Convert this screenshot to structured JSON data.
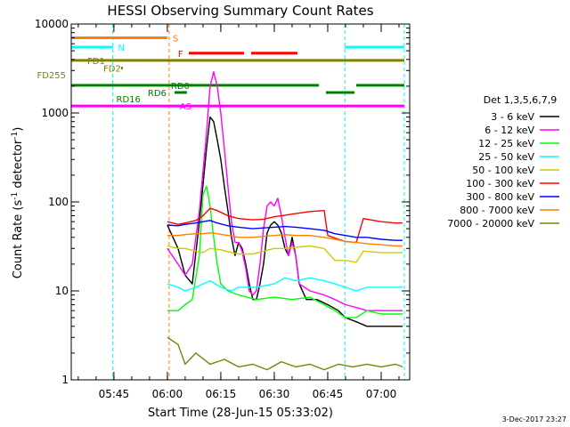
{
  "chart_data": {
    "type": "line",
    "title": "HESSI Observing Summary Count Rates",
    "xlabel": "Start Time (28-Jun-15 05:33:02)",
    "ylabel": "Count Rate (s",
    "ylabel_sup1": "-1",
    "ylabel_mid": " detector",
    "ylabel_sup2": "-1",
    "ylabel_end": ")",
    "xlim": [
      "05:33:02",
      "07:08:00"
    ],
    "ylim": [
      1,
      10000
    ],
    "yscale": "log",
    "x_ticks": [
      "05:45",
      "06:00",
      "06:15",
      "06:30",
      "06:45",
      "07:00"
    ],
    "y_ticks": [
      {
        "label": "1",
        "value": 1
      },
      {
        "label": "10",
        "value": 10
      },
      {
        "label": "100",
        "value": 100
      },
      {
        "label": "1000",
        "value": 1000
      },
      {
        "label": "10000",
        "value": 10000
      }
    ],
    "legend_title": "Det 1,3,5,6,7,9",
    "legend_position": "right",
    "series": [
      {
        "name": "3 - 6 keV",
        "color": "#000000",
        "values": [
          [
            "06:00",
            55
          ],
          [
            "06:03",
            30
          ],
          [
            "06:05",
            15
          ],
          [
            "06:07",
            12
          ],
          [
            "06:09",
            60
          ],
          [
            "06:11",
            400
          ],
          [
            "06:12",
            900
          ],
          [
            "06:13",
            800
          ],
          [
            "06:14",
            500
          ],
          [
            "06:15",
            300
          ],
          [
            "06:16",
            150
          ],
          [
            "06:17",
            80
          ],
          [
            "06:18",
            40
          ],
          [
            "06:19",
            25
          ],
          [
            "06:20",
            35
          ],
          [
            "06:21",
            30
          ],
          [
            "06:22",
            20
          ],
          [
            "06:23",
            12
          ],
          [
            "06:24",
            8
          ],
          [
            "06:25",
            8
          ],
          [
            "06:26",
            12
          ],
          [
            "06:27",
            20
          ],
          [
            "06:28",
            45
          ],
          [
            "06:29",
            55
          ],
          [
            "06:30",
            60
          ],
          [
            "06:31",
            55
          ],
          [
            "06:32",
            45
          ],
          [
            "06:33",
            30
          ],
          [
            "06:34",
            25
          ],
          [
            "06:35",
            40
          ],
          [
            "06:36",
            25
          ],
          [
            "06:37",
            12
          ],
          [
            "06:39",
            8
          ],
          [
            "06:42",
            8
          ],
          [
            "06:45",
            7
          ],
          [
            "06:48",
            6
          ],
          [
            "06:50",
            5
          ],
          [
            "06:53",
            4.5
          ],
          [
            "06:56",
            4
          ],
          [
            "06:58",
            4
          ],
          [
            "07:01",
            4
          ],
          [
            "07:04",
            4
          ],
          [
            "07:06",
            4
          ]
        ]
      },
      {
        "name": "6 - 12 keV",
        "color": "#ff00ff",
        "values": [
          [
            "06:00",
            30
          ],
          [
            "06:03",
            20
          ],
          [
            "06:05",
            15
          ],
          [
            "06:07",
            20
          ],
          [
            "06:09",
            80
          ],
          [
            "06:11",
            600
          ],
          [
            "06:12",
            2000
          ],
          [
            "06:13",
            2900
          ],
          [
            "06:14",
            2000
          ],
          [
            "06:15",
            1000
          ],
          [
            "06:16",
            400
          ],
          [
            "06:17",
            150
          ],
          [
            "06:18",
            60
          ],
          [
            "06:19",
            35
          ],
          [
            "06:20",
            35
          ],
          [
            "06:21",
            28
          ],
          [
            "06:22",
            18
          ],
          [
            "06:23",
            10
          ],
          [
            "06:24",
            9
          ],
          [
            "06:25",
            10
          ],
          [
            "06:26",
            20
          ],
          [
            "06:27",
            50
          ],
          [
            "06:28",
            90
          ],
          [
            "06:29",
            100
          ],
          [
            "06:30",
            90
          ],
          [
            "06:31",
            110
          ],
          [
            "06:32",
            70
          ],
          [
            "06:33",
            40
          ],
          [
            "06:34",
            25
          ],
          [
            "06:35",
            35
          ],
          [
            "06:36",
            25
          ],
          [
            "06:37",
            12
          ],
          [
            "06:40",
            10
          ],
          [
            "06:44",
            9
          ],
          [
            "06:47",
            8
          ],
          [
            "06:50",
            7
          ],
          [
            "06:53",
            6.5
          ],
          [
            "06:56",
            6
          ],
          [
            "07:00",
            6
          ],
          [
            "07:04",
            6
          ],
          [
            "07:06",
            6
          ]
        ]
      },
      {
        "name": "12 - 25 keV",
        "color": "#00ff00",
        "values": [
          [
            "06:00",
            6
          ],
          [
            "06:03",
            6
          ],
          [
            "06:05",
            7
          ],
          [
            "06:07",
            8
          ],
          [
            "06:09",
            25
          ],
          [
            "06:10",
            120
          ],
          [
            "06:11",
            150
          ],
          [
            "06:12",
            90
          ],
          [
            "06:13",
            40
          ],
          [
            "06:14",
            20
          ],
          [
            "06:15",
            12
          ],
          [
            "06:17",
            10
          ],
          [
            "06:20",
            9
          ],
          [
            "06:25",
            8
          ],
          [
            "06:30",
            8.5
          ],
          [
            "06:35",
            8
          ],
          [
            "06:40",
            8.5
          ],
          [
            "06:44",
            7
          ],
          [
            "06:47",
            6
          ],
          [
            "06:50",
            5
          ],
          [
            "06:53",
            5
          ],
          [
            "06:56",
            6
          ],
          [
            "07:00",
            5.5
          ],
          [
            "07:04",
            5.5
          ],
          [
            "07:06",
            5.5
          ]
        ]
      },
      {
        "name": "25 - 50 keV",
        "color": "#00ffff",
        "values": [
          [
            "06:00",
            12
          ],
          [
            "06:03",
            11
          ],
          [
            "06:05",
            10
          ],
          [
            "06:08",
            11
          ],
          [
            "06:10",
            12
          ],
          [
            "06:12",
            13
          ],
          [
            "06:15",
            11
          ],
          [
            "06:18",
            10
          ],
          [
            "06:20",
            11
          ],
          [
            "06:25",
            11
          ],
          [
            "06:30",
            12
          ],
          [
            "06:33",
            14
          ],
          [
            "06:36",
            13
          ],
          [
            "06:40",
            14
          ],
          [
            "06:44",
            13
          ],
          [
            "06:47",
            12
          ],
          [
            "06:50",
            11
          ],
          [
            "06:53",
            10
          ],
          [
            "06:56",
            11
          ],
          [
            "07:00",
            11
          ],
          [
            "07:04",
            11
          ],
          [
            "07:06",
            11
          ]
        ]
      },
      {
        "name": "50 - 100 keV",
        "color": "#cccc00",
        "values": [
          [
            "06:00",
            32
          ],
          [
            "06:03",
            30
          ],
          [
            "06:05",
            30
          ],
          [
            "06:08",
            28
          ],
          [
            "06:10",
            27
          ],
          [
            "06:12",
            30
          ],
          [
            "06:15",
            29
          ],
          [
            "06:18",
            27
          ],
          [
            "06:20",
            26
          ],
          [
            "06:24",
            26
          ],
          [
            "06:27",
            28
          ],
          [
            "06:30",
            30
          ],
          [
            "06:33",
            30
          ],
          [
            "06:36",
            31
          ],
          [
            "06:40",
            32
          ],
          [
            "06:44",
            30
          ],
          [
            "06:47",
            22
          ],
          [
            "06:50",
            22
          ],
          [
            "06:53",
            21
          ],
          [
            "06:55",
            28
          ],
          [
            "07:00",
            27
          ],
          [
            "07:04",
            27
          ],
          [
            "07:06",
            27
          ]
        ]
      },
      {
        "name": "100 - 300 keV",
        "color": "#ff0000",
        "values": [
          [
            "06:00",
            60
          ],
          [
            "06:03",
            56
          ],
          [
            "06:05",
            58
          ],
          [
            "06:08",
            62
          ],
          [
            "06:10",
            70
          ],
          [
            "06:12",
            85
          ],
          [
            "06:14",
            80
          ],
          [
            "06:17",
            70
          ],
          [
            "06:20",
            65
          ],
          [
            "06:24",
            63
          ],
          [
            "06:27",
            64
          ],
          [
            "06:30",
            68
          ],
          [
            "06:33",
            71
          ],
          [
            "06:36",
            74
          ],
          [
            "06:40",
            78
          ],
          [
            "06:44",
            80
          ],
          [
            "06:45",
            42
          ],
          [
            "06:48",
            38
          ],
          [
            "06:50",
            36
          ],
          [
            "06:53",
            35
          ],
          [
            "06:55",
            65
          ],
          [
            "07:00",
            60
          ],
          [
            "07:04",
            58
          ],
          [
            "07:06",
            58
          ]
        ]
      },
      {
        "name": "300 - 800 keV",
        "color": "#0000ff",
        "values": [
          [
            "06:00",
            55
          ],
          [
            "06:03",
            54
          ],
          [
            "06:05",
            56
          ],
          [
            "06:08",
            58
          ],
          [
            "06:10",
            60
          ],
          [
            "06:12",
            62
          ],
          [
            "06:14",
            58
          ],
          [
            "06:17",
            54
          ],
          [
            "06:20",
            52
          ],
          [
            "06:24",
            50
          ],
          [
            "06:27",
            51
          ],
          [
            "06:30",
            52
          ],
          [
            "06:33",
            53
          ],
          [
            "06:36",
            52
          ],
          [
            "06:40",
            50
          ],
          [
            "06:44",
            48
          ],
          [
            "06:47",
            44
          ],
          [
            "06:50",
            42
          ],
          [
            "06:53",
            40
          ],
          [
            "06:56",
            40
          ],
          [
            "07:00",
            38
          ],
          [
            "07:04",
            37
          ],
          [
            "07:06",
            37
          ]
        ]
      },
      {
        "name": "800 - 7000 keV",
        "color": "#ff8000",
        "values": [
          [
            "06:00",
            42
          ],
          [
            "06:03",
            42
          ],
          [
            "06:05",
            43
          ],
          [
            "06:08",
            44
          ],
          [
            "06:10",
            44
          ],
          [
            "06:12",
            45
          ],
          [
            "06:14",
            44
          ],
          [
            "06:17",
            42
          ],
          [
            "06:20",
            40
          ],
          [
            "06:24",
            40
          ],
          [
            "06:27",
            41
          ],
          [
            "06:30",
            42
          ],
          [
            "06:33",
            43
          ],
          [
            "06:36",
            42
          ],
          [
            "06:40",
            42
          ],
          [
            "06:44",
            40
          ],
          [
            "06:47",
            38
          ],
          [
            "06:50",
            36
          ],
          [
            "06:53",
            35
          ],
          [
            "06:56",
            34
          ],
          [
            "07:00",
            33
          ],
          [
            "07:04",
            32
          ],
          [
            "07:06",
            32
          ]
        ]
      },
      {
        "name": "7000 - 20000 keV",
        "color": "#808000",
        "values": [
          [
            "06:00",
            3
          ],
          [
            "06:03",
            2.5
          ],
          [
            "06:05",
            1.5
          ],
          [
            "06:08",
            2
          ],
          [
            "06:12",
            1.5
          ],
          [
            "06:16",
            1.7
          ],
          [
            "06:20",
            1.4
          ],
          [
            "06:24",
            1.5
          ],
          [
            "06:28",
            1.3
          ],
          [
            "06:32",
            1.6
          ],
          [
            "06:36",
            1.4
          ],
          [
            "06:40",
            1.5
          ],
          [
            "06:44",
            1.3
          ],
          [
            "06:48",
            1.5
          ],
          [
            "06:52",
            1.4
          ],
          [
            "06:56",
            1.5
          ],
          [
            "07:00",
            1.4
          ],
          [
            "07:04",
            1.5
          ],
          [
            "07:06",
            1.4
          ]
        ]
      }
    ],
    "flags": [
      {
        "label": "S",
        "color": "#ff8000",
        "start": "05:33:02",
        "end": "06:00:00",
        "value": 7000
      },
      {
        "label": "N",
        "color": "#00ffff",
        "segments": [
          [
            "05:33:02",
            "05:44:40"
          ],
          [
            "06:49:50",
            "07:06:30"
          ]
        ],
        "value": 5500
      },
      {
        "label": "F",
        "color": "#ff0000",
        "segments": [
          [
            "06:06:00",
            "06:21:30"
          ],
          [
            "06:23:30",
            "06:36:30"
          ]
        ],
        "value": 4700
      },
      {
        "label": "FD1",
        "color": "#808000",
        "start": "05:33:02",
        "end": "07:06:30",
        "value": 3900
      },
      {
        "label": "FD2",
        "color": "#808000",
        "start": "05:47:00",
        "end": "05:47:30",
        "value": 3200
      },
      {
        "label": "FD255",
        "color": "#808000",
        "marker_only": true,
        "value": 2700
      },
      {
        "label": "RD0",
        "color": "#008000",
        "segments": [
          [
            "05:33:02",
            "06:42:30"
          ],
          [
            "06:53:00",
            "07:06:30"
          ]
        ],
        "value": 2050
      },
      {
        "label": "RD6",
        "color": "#008000",
        "segments": [
          [
            "06:02:00",
            "06:05:30"
          ],
          [
            "06:44:30",
            "06:52:30"
          ]
        ],
        "value": 1700
      },
      {
        "label": "RD16",
        "color": "#008000",
        "marker_only": true,
        "value": 1450
      },
      {
        "label": "AS",
        "color": "#ff00ff",
        "start": "05:33:02",
        "end": "07:06:30",
        "value": 1200
      }
    ],
    "vlines": [
      {
        "time": "05:44:40",
        "color": "#00ffff"
      },
      {
        "time": "06:00:30",
        "color": "#ff8000"
      },
      {
        "time": "06:49:50",
        "color": "#00ffff"
      },
      {
        "time": "07:06:30",
        "color": "#00ffff"
      }
    ],
    "grid": false
  },
  "footer": {
    "timestamp": "3-Dec-2017 23:27"
  }
}
